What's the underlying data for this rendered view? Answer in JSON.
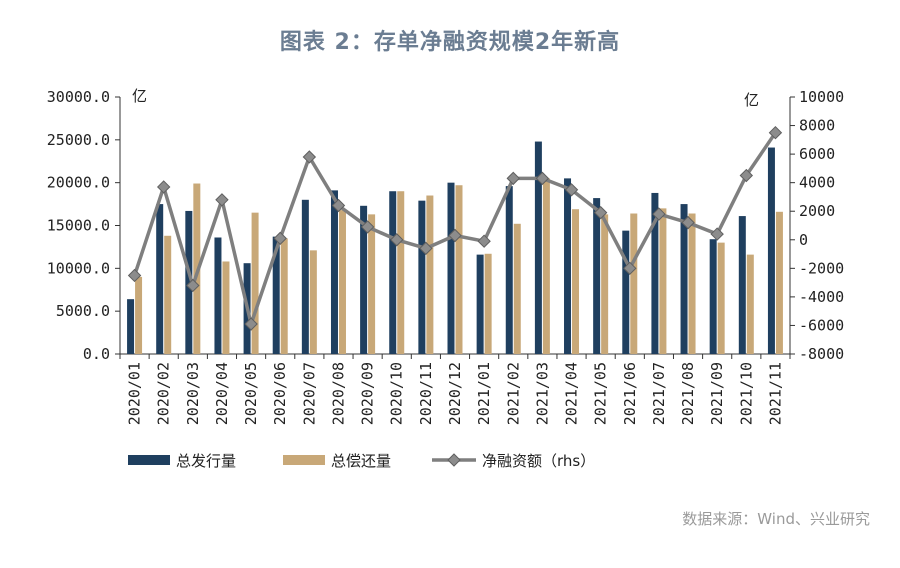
{
  "chart_data": {
    "type": "bar",
    "title": "图表 2：存单净融资规模2年新高",
    "source": "数据来源：Wind、兴业研究",
    "categories": [
      "2020/01",
      "2020/02",
      "2020/03",
      "2020/04",
      "2020/05",
      "2020/06",
      "2020/07",
      "2020/08",
      "2020/09",
      "2020/10",
      "2020/11",
      "2020/12",
      "2021/01",
      "2021/02",
      "2021/03",
      "2021/04",
      "2021/05",
      "2021/06",
      "2021/07",
      "2021/08",
      "2021/09",
      "2021/10",
      "2021/11"
    ],
    "series": [
      {
        "name": "总发行量",
        "type": "bar",
        "axis": "left",
        "color": "#1f3f5f",
        "values": [
          6400,
          17500,
          16700,
          13600,
          10600,
          13700,
          18000,
          19100,
          17300,
          19000,
          17900,
          20000,
          11600,
          19600,
          24800,
          20500,
          18200,
          14400,
          18800,
          17500,
          13400,
          16100,
          24100
        ]
      },
      {
        "name": "总偿还量",
        "type": "bar",
        "axis": "left",
        "color": "#c8a878",
        "values": [
          9000,
          13800,
          19900,
          10800,
          16500,
          13500,
          12100,
          16800,
          16300,
          19000,
          18500,
          19700,
          11700,
          15200,
          20500,
          16900,
          16300,
          16400,
          17000,
          16400,
          13000,
          11600,
          16600
        ]
      },
      {
        "name": "净融资额（rhs）",
        "type": "line",
        "axis": "right",
        "color": "#7f7f7f",
        "values": [
          -2500,
          3700,
          -3200,
          2800,
          -5900,
          100,
          5800,
          2400,
          900,
          0,
          -600,
          300,
          -100,
          4300,
          4300,
          3500,
          1900,
          -2000,
          1800,
          1200,
          400,
          4500,
          7500
        ]
      }
    ],
    "left_axis": {
      "min": 0,
      "max": 30000,
      "step": 5000,
      "unit": "亿",
      "tick_labels": [
        "0.0",
        "5000.0",
        "10000.0",
        "15000.0",
        "20000.0",
        "25000.0",
        "30000.0"
      ]
    },
    "right_axis": {
      "min": -8000,
      "max": 10000,
      "step": 2000,
      "unit": "亿",
      "tick_labels": [
        "-8000",
        "-6000",
        "-4000",
        "-2000",
        "0",
        "2000",
        "4000",
        "6000",
        "8000",
        "10000"
      ]
    },
    "legend_position": "bottom"
  }
}
